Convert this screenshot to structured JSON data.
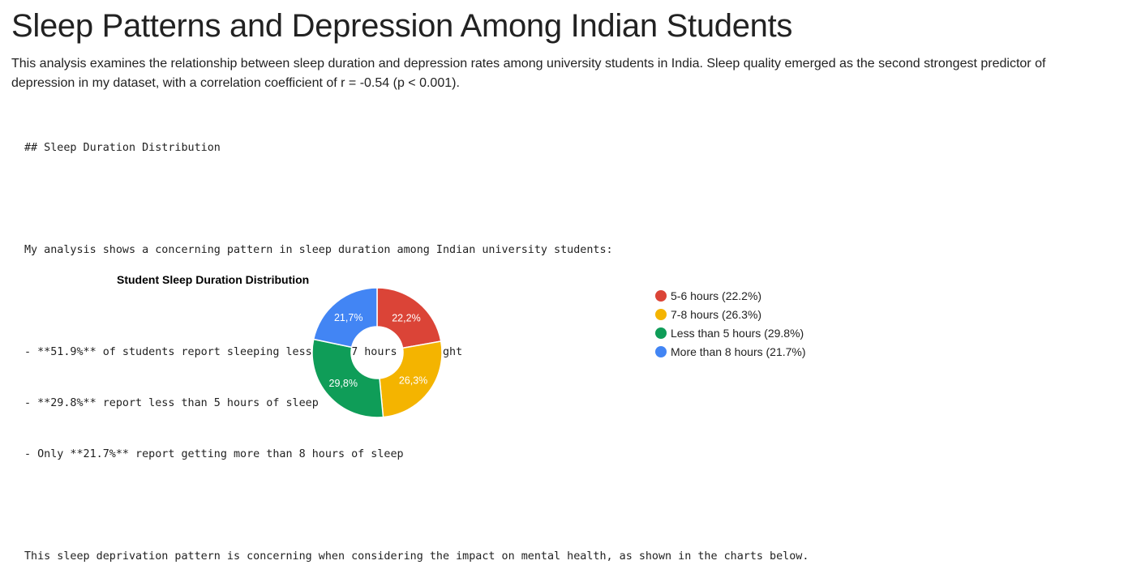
{
  "page": {
    "title": "Sleep Patterns and Depression Among Indian Students",
    "intro": "This analysis examines the relationship between sleep duration and depression rates among university students in India. Sleep quality emerged as the second strongest predictor of depression in my dataset, with a correlation coefficient of r = -0.54 (p < 0.001).",
    "markdown_lines": [
      "## Sleep Duration Distribution",
      "",
      "My analysis shows a concerning pattern in sleep duration among Indian university students:",
      "",
      "- **51.9%** of students report sleeping less than 7 hours per night",
      "- **29.8%** report less than 5 hours of sleep",
      "- Only **21.7%** report getting more than 8 hours of sleep",
      "",
      "This sleep deprivation pattern is concerning when considering the impact on mental health, as shown in the charts below."
    ]
  },
  "chart_data": {
    "type": "pie",
    "subtype": "donut",
    "title": "Student Sleep Duration Distribution",
    "legend_position": "right",
    "slices": [
      {
        "label": "5-6 hours",
        "legend": "5-6 hours (22.2%)",
        "value": 22.2,
        "data_label": "22,2%",
        "color": "#db4437"
      },
      {
        "label": "7-8 hours",
        "legend": "7-8 hours (26.3%)",
        "value": 26.3,
        "data_label": "26,3%",
        "color": "#f4b400"
      },
      {
        "label": "Less than 5 hours",
        "legend": "Less than 5 hours (29.8%)",
        "value": 29.8,
        "data_label": "29,8%",
        "color": "#0f9d58"
      },
      {
        "label": "More than 8 hours",
        "legend": "More than 8 hours (21.7%)",
        "value": 21.7,
        "data_label": "21,7%",
        "color": "#4285f4"
      }
    ]
  }
}
